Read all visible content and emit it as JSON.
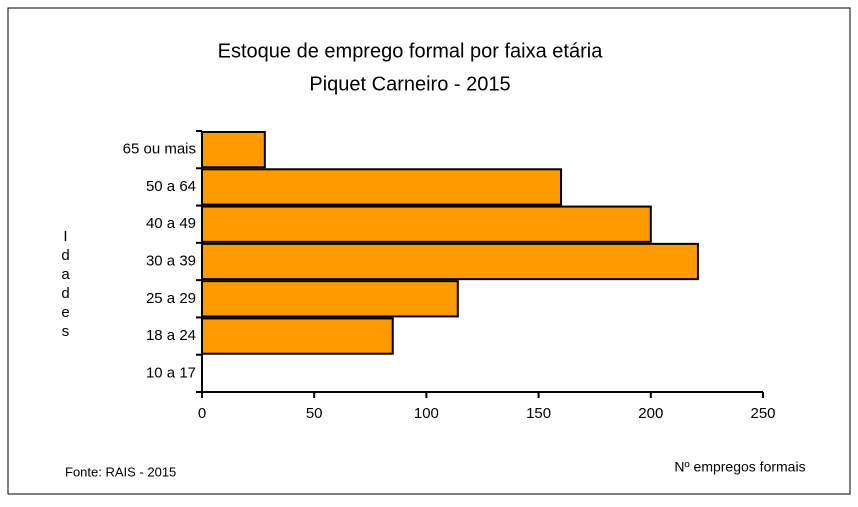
{
  "chart_data": {
    "type": "bar",
    "orientation": "horizontal",
    "title": "Estoque de emprego formal por faixa etária",
    "subtitle": "Piquet Carneiro - 2015",
    "x_label": "Nº empregos formais",
    "y_label": "Idades",
    "source": "Fonte: RAIS - 2015",
    "categories": [
      "65 ou mais",
      "50 a 64",
      "40 a 49",
      "30 a 39",
      "25 a 29",
      "18 a 24",
      "10 a 17"
    ],
    "values": [
      28,
      160,
      200,
      221,
      114,
      85,
      0
    ],
    "color": "#ff9900",
    "xlim": [
      0,
      250
    ],
    "xticks": [
      0,
      50,
      100,
      150,
      200,
      250
    ],
    "grid": false
  }
}
